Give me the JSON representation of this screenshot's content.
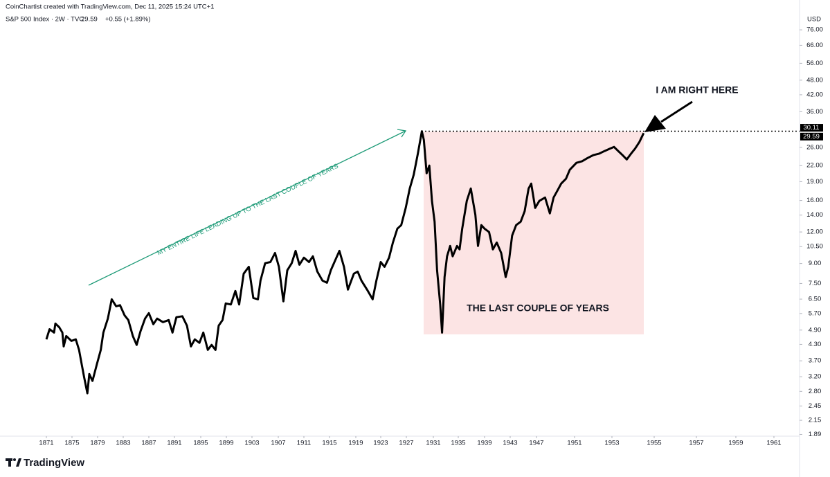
{
  "header": {
    "credit": "CoinChartist created with TradingView.com, Dec 11, 2025 15:24 UTC+1",
    "symbol": "S&P 500 Index · 2W · TVC",
    "price": "29.59",
    "change": "+0.55 (+1.89%)",
    "currency": "USD"
  },
  "brand": "TradingView",
  "chart_data": {
    "type": "line",
    "log_scale": true,
    "color": "#000000",
    "annotations": [
      "MY ENTIRE LIFE LEADING UP TO THE LAST COUPLE OF YEARS",
      "THE LAST COUPLE OF YEARS",
      "I AM RIGHT HERE"
    ],
    "x": [
      1871.0,
      1871.5,
      1872.2,
      1872.4,
      1873.0,
      1873.5,
      1873.7,
      1874.1,
      1874.9,
      1875.6,
      1876.1,
      1876.5,
      1876.9,
      1877.4,
      1877.7,
      1878.2,
      1878.9,
      1879.5,
      1879.9,
      1880.6,
      1881.2,
      1881.9,
      1882.5,
      1883.2,
      1883.8,
      1884.5,
      1885.1,
      1885.7,
      1886.4,
      1887.0,
      1887.7,
      1888.3,
      1889.2,
      1890.1,
      1890.7,
      1891.3,
      1892.2,
      1892.9,
      1893.5,
      1894.1,
      1894.8,
      1895.4,
      1896.1,
      1896.7,
      1897.3,
      1897.8,
      1898.4,
      1898.9,
      1899.7,
      1900.4,
      1901.0,
      1901.7,
      1902.5,
      1903.2,
      1903.9,
      1904.3,
      1905.0,
      1905.8,
      1906.5,
      1907.1,
      1907.8,
      1908.4,
      1909.1,
      1909.7,
      1910.3,
      1911.0,
      1911.8,
      1912.4,
      1913.1,
      1913.9,
      1914.6,
      1915.2,
      1915.9,
      1916.5,
      1917.2,
      1917.8,
      1918.7,
      1919.3,
      1919.9,
      1920.8,
      1921.7,
      1922.3,
      1923.0,
      1923.6,
      1924.3,
      1924.9,
      1925.6,
      1926.2,
      1926.9,
      1927.5,
      1928.1,
      1928.7,
      1929.3,
      1929.6,
      1930.0,
      1930.4,
      1930.8,
      1931.2,
      1931.6,
      1932.1,
      1932.4,
      1932.8,
      1933.2,
      1933.7,
      1934.1,
      1934.8,
      1935.2,
      1935.6,
      1936.3,
      1936.9,
      1937.6,
      1938.0,
      1938.5,
      1939.0,
      1939.7,
      1940.3,
      1940.9,
      1941.6,
      1942.3,
      1942.7,
      1943.3,
      1943.9,
      1944.6,
      1945.2,
      1945.8,
      1946.2,
      1946.8,
      1947.3,
      1947.9,
      1948.4,
      1948.8,
      1949.2,
      1949.6,
      1950.1,
      1950.5,
      1951.1,
      1951.4,
      1951.7,
      1952.0,
      1952.3,
      1952.6,
      1952.9,
      1953.1,
      1953.3,
      1953.5,
      1953.7,
      1953.9,
      1954.1,
      1954.3,
      1954.5
    ],
    "values": [
      4.5,
      4.94,
      4.79,
      5.2,
      5.03,
      4.79,
      4.22,
      4.64,
      4.44,
      4.5,
      4.09,
      3.6,
      3.18,
      2.75,
      3.28,
      3.08,
      3.6,
      4.09,
      4.79,
      5.44,
      6.49,
      6.09,
      6.15,
      5.61,
      5.37,
      4.64,
      4.28,
      4.85,
      5.44,
      5.72,
      5.17,
      5.44,
      5.27,
      5.37,
      4.79,
      5.51,
      5.56,
      5.1,
      4.22,
      4.5,
      4.36,
      4.79,
      4.09,
      4.28,
      4.09,
      5.1,
      5.37,
      6.25,
      6.19,
      7.0,
      6.19,
      8.2,
      8.73,
      6.57,
      6.49,
      7.7,
      9.02,
      9.12,
      9.91,
      8.73,
      6.37,
      8.46,
      9.02,
      10.1,
      8.9,
      9.49,
      9.12,
      9.61,
      8.36,
      7.7,
      7.55,
      8.46,
      9.31,
      10.1,
      8.73,
      7.09,
      8.2,
      8.36,
      7.7,
      7.09,
      6.49,
      7.7,
      9.12,
      8.73,
      9.49,
      10.9,
      12.37,
      12.77,
      14.95,
      17.85,
      20.26,
      24.51,
      30.11,
      27.79,
      20.52,
      22.0,
      15.94,
      13.18,
      8.46,
      6.19,
      4.79,
      7.95,
      9.61,
      10.56,
      9.61,
      10.56,
      10.24,
      12.37,
      15.94,
      17.85,
      14.04,
      10.56,
      12.77,
      12.37,
      11.99,
      10.24,
      10.9,
      9.91,
      7.95,
      8.73,
      11.61,
      12.77,
      13.18,
      14.5,
      17.85,
      18.67,
      14.95,
      15.94,
      16.44,
      14.22,
      16.44,
      17.52,
      18.67,
      19.51,
      21.18,
      22.56,
      22.9,
      23.59,
      24.2,
      24.51,
      25.13,
      25.7,
      26.1,
      25.13,
      24.2,
      23.28,
      24.51,
      25.7,
      27.28,
      29.59
    ],
    "ylim": [
      1.86,
      99.8
    ],
    "yticks": [
      {
        "value": 76,
        "label": "76.00"
      },
      {
        "value": 66,
        "label": "66.00"
      },
      {
        "value": 56,
        "label": "56.00"
      },
      {
        "value": 48,
        "label": "48.00"
      },
      {
        "value": 42,
        "label": "42.00"
      },
      {
        "value": 36,
        "label": "36.00"
      },
      {
        "value": 26,
        "label": "26.00"
      },
      {
        "value": 22,
        "label": "22.00"
      },
      {
        "value": 19,
        "label": "19.00"
      },
      {
        "value": 16,
        "label": "16.00"
      },
      {
        "value": 14,
        "label": "14.00"
      },
      {
        "value": 12,
        "label": "12.00"
      },
      {
        "value": 10.5,
        "label": "10.50"
      },
      {
        "value": 9,
        "label": "9.00"
      },
      {
        "value": 7.5,
        "label": "7.50"
      },
      {
        "value": 6.5,
        "label": "6.50"
      },
      {
        "value": 5.7,
        "label": "5.70"
      },
      {
        "value": 4.9,
        "label": "4.90"
      },
      {
        "value": 4.3,
        "label": "4.30"
      },
      {
        "value": 3.7,
        "label": "3.70"
      },
      {
        "value": 3.2,
        "label": "3.20"
      },
      {
        "value": 2.8,
        "label": "2.80"
      },
      {
        "value": 2.45,
        "label": "2.45"
      },
      {
        "value": 2.15,
        "label": "2.15"
      },
      {
        "value": 1.89,
        "label": "1.89"
      }
    ],
    "price_labels": [
      30.11,
      29.59
    ],
    "xticks": [
      1871,
      1875,
      1879,
      1883,
      1887,
      1891,
      1895,
      1899,
      1903,
      1907,
      1911,
      1915,
      1919,
      1923,
      1927,
      1931,
      1935,
      1939,
      1943,
      1947,
      1951,
      1953,
      1955,
      1957,
      1959,
      1961
    ]
  }
}
